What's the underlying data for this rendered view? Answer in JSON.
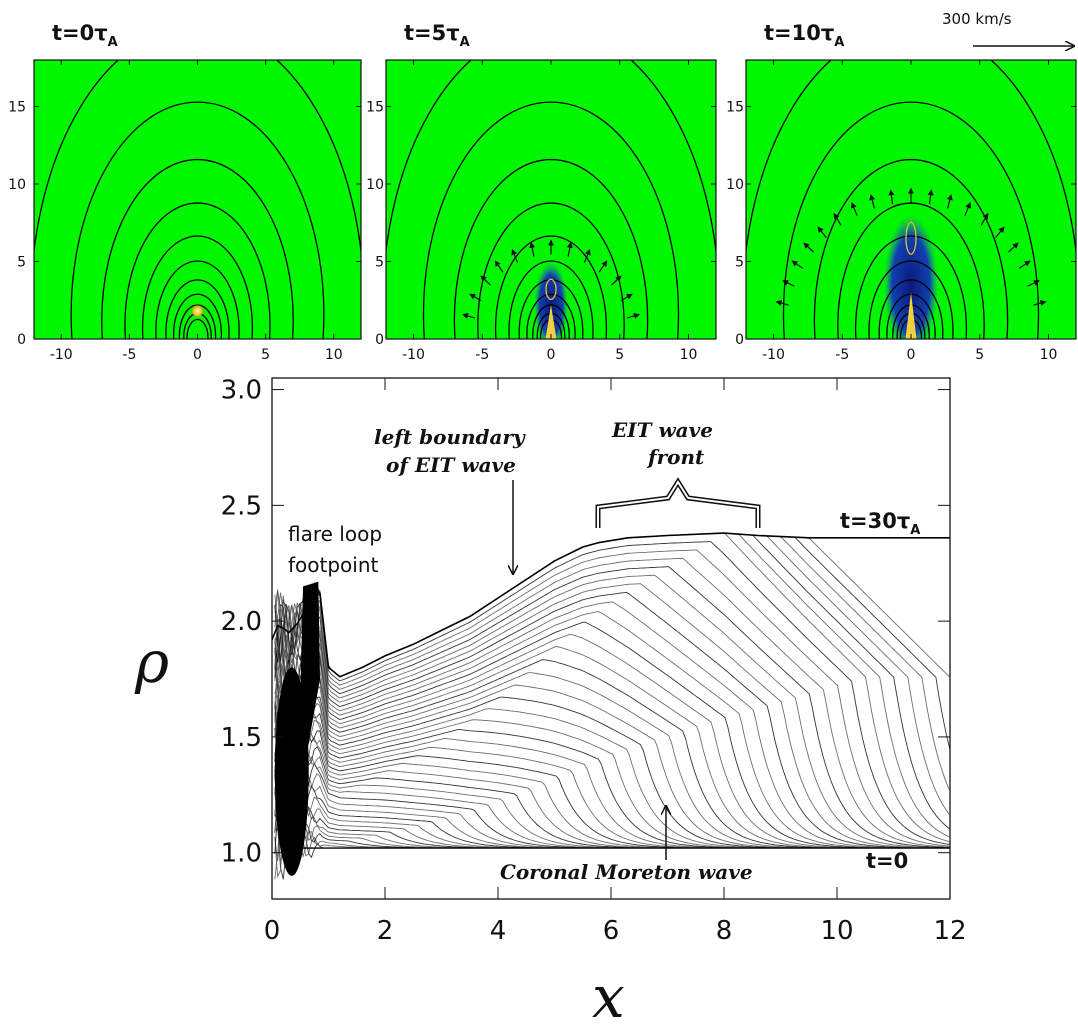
{
  "scale_arrow": {
    "label": "300 km/s"
  },
  "panels": [
    {
      "t_prefix": "t=",
      "t_value": "0τ",
      "t_sub": "A",
      "wave_strength": 0.0,
      "wave_radius": 0
    },
    {
      "t_prefix": "t=",
      "t_value": "5τ",
      "t_sub": "A",
      "wave_strength": 0.8,
      "wave_radius": 6.2
    },
    {
      "t_prefix": "t=",
      "t_value": "10τ",
      "t_sub": "A",
      "wave_strength": 1.0,
      "wave_radius": 10.0
    }
  ],
  "panel_axes": {
    "xlim": [
      -12,
      12
    ],
    "ylim": [
      0,
      18
    ],
    "xticks": [
      "-10",
      "-5",
      "0",
      "5",
      "10"
    ],
    "xtick_values": [
      -10,
      -5,
      0,
      5,
      10
    ],
    "yticks": [
      "0",
      "5",
      "10",
      "15"
    ],
    "ytick_values": [
      0,
      5,
      10,
      15
    ]
  },
  "chart_data": {
    "type": "line",
    "xlabel": "x",
    "ylabel": "ρ",
    "xlim": [
      0,
      12
    ],
    "ylim": [
      0.8,
      3.05
    ],
    "xticks": [
      "0",
      "2",
      "4",
      "6",
      "8",
      "10",
      "12"
    ],
    "xtick_values": [
      0,
      2,
      4,
      6,
      8,
      10,
      12
    ],
    "yticks": [
      "1.0",
      "1.5",
      "2.0",
      "2.5",
      "3.0"
    ],
    "ytick_values": [
      1.0,
      1.5,
      2.0,
      2.5,
      3.0
    ],
    "final_profile": {
      "x": [
        0.0,
        0.1,
        0.2,
        0.3,
        0.45,
        0.6,
        0.75,
        0.85,
        1.0,
        1.2,
        1.6,
        2.0,
        2.5,
        3.0,
        3.5,
        4.0,
        4.5,
        5.0,
        5.5,
        5.8,
        6.3,
        7.0,
        8.0,
        8.6,
        9.5,
        12.0
      ],
      "y": [
        1.92,
        1.98,
        1.97,
        1.95,
        1.99,
        2.05,
        2.14,
        2.12,
        1.8,
        1.76,
        1.8,
        1.85,
        1.9,
        1.96,
        2.02,
        2.1,
        2.18,
        2.26,
        2.32,
        2.34,
        2.36,
        2.37,
        2.38,
        2.37,
        2.36,
        2.36
      ]
    },
    "annotations": {
      "footpoint_line1": "flare loop",
      "footpoint_line2": "footpoint",
      "left_boundary_line1": "left boundary",
      "left_boundary_line2": "of EIT wave",
      "front_line1": "EIT wave",
      "front_line2": "front",
      "moreton": "Coronal Moreton wave",
      "t_final_prefix": "t=30τ",
      "t_final_sub": "A",
      "t_initial": "t=0"
    }
  },
  "colors": {
    "background_green": "#00f700",
    "wave_red": "#e0401a",
    "cavity_blue": "#0a2a9a",
    "line": "#000000"
  }
}
